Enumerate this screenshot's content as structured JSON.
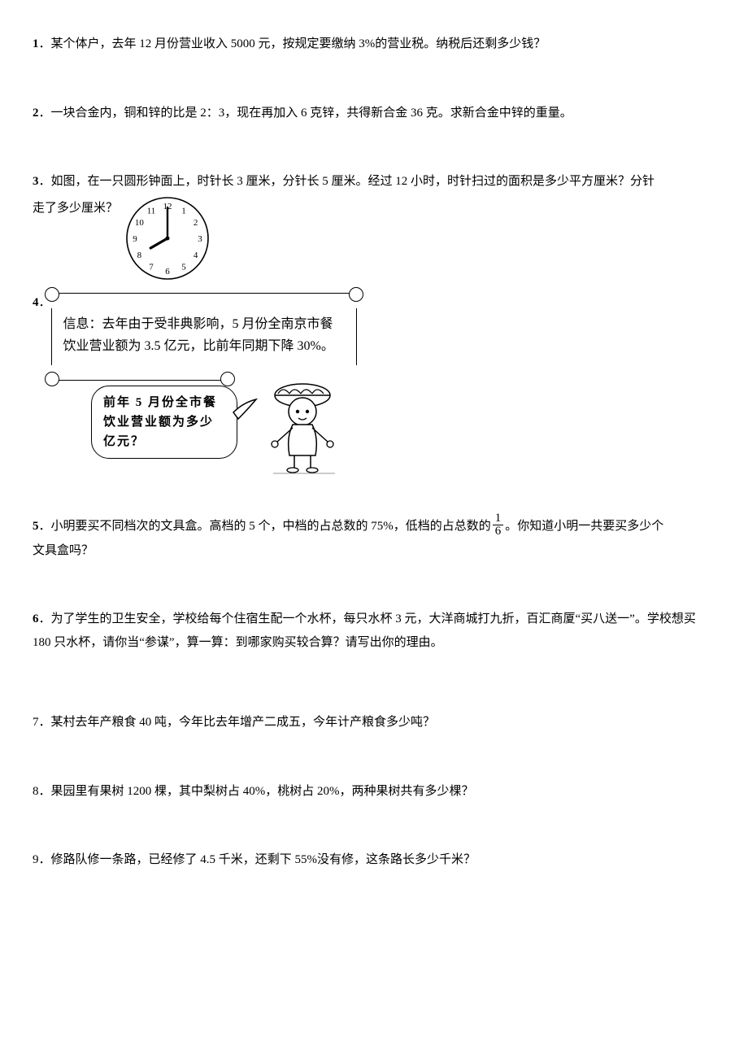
{
  "questions": {
    "q1": {
      "num": "1",
      "text": "．某个体户，去年 12 月份营业收入 5000 元，按规定要缴纳 3%的营业税。纳税后还剩多少钱？"
    },
    "q2": {
      "num": "2",
      "text": "．一块合金内，铜和锌的比是 2：3，现在再加入 6 克锌，共得新合金 36 克。求新合金中锌的重量。"
    },
    "q3": {
      "num": "3",
      "text_a": "．如图，在一只圆形钟面上，时针长 3 厘米，分针长 5 厘米。经过 12 小时，时针扫过的面积是多少平方厘米？分针",
      "text_b": "走了多少厘米？"
    },
    "q4": {
      "num": "4",
      "info": "信息：去年由于受非典影响，5 月份全南京市餐饮业营业额为 3.5 亿元，比前年同期下降 30%。",
      "bubble": "前年 5 月份全市餐饮业营业额为多少亿元？"
    },
    "q5": {
      "num": "5",
      "text_a": "．小明要买不同档次的文具盒。高档的 5 个，中档的占总数的 75%，低档的占总数的",
      "frac_num": "1",
      "frac_den": "6",
      "text_b": "。你知道小明一共要买多少个",
      "text_c": "文具盒吗？"
    },
    "q6": {
      "num": "6",
      "text": "．为了学生的卫生安全，学校给每个住宿生配一个水杯，每只水杯 3 元，大洋商城打九折，百汇商厦“买八送一”。学校想买 180 只水杯，请你当“参谋”，算一算：到哪家购买较合算？请写出你的理由。"
    },
    "q7": {
      "num": "7",
      "text": "．某村去年产粮食 40 吨，今年比去年增产二成五，今年计产粮食多少吨？"
    },
    "q8": {
      "num": "8",
      "text": "．果园里有果树 1200 棵，其中梨树占 40%，桃树占 20%，两种果树共有多少棵？"
    },
    "q9": {
      "num": "9",
      "text": "．修路队修一条路，已经修了 4.5 千米，还剩下 55%没有修，这条路长多少千米？"
    }
  },
  "clock": {
    "radius": 50,
    "numbers": [
      "12",
      "1",
      "2",
      "3",
      "4",
      "5",
      "6",
      "7",
      "8",
      "9",
      "10",
      "11"
    ],
    "hour_hand_len": 24,
    "minute_hand_len": 38,
    "hour_angle": 240,
    "minute_angle": 0,
    "stroke": "#000"
  },
  "colors": {
    "text": "#000000",
    "bg": "#ffffff"
  }
}
